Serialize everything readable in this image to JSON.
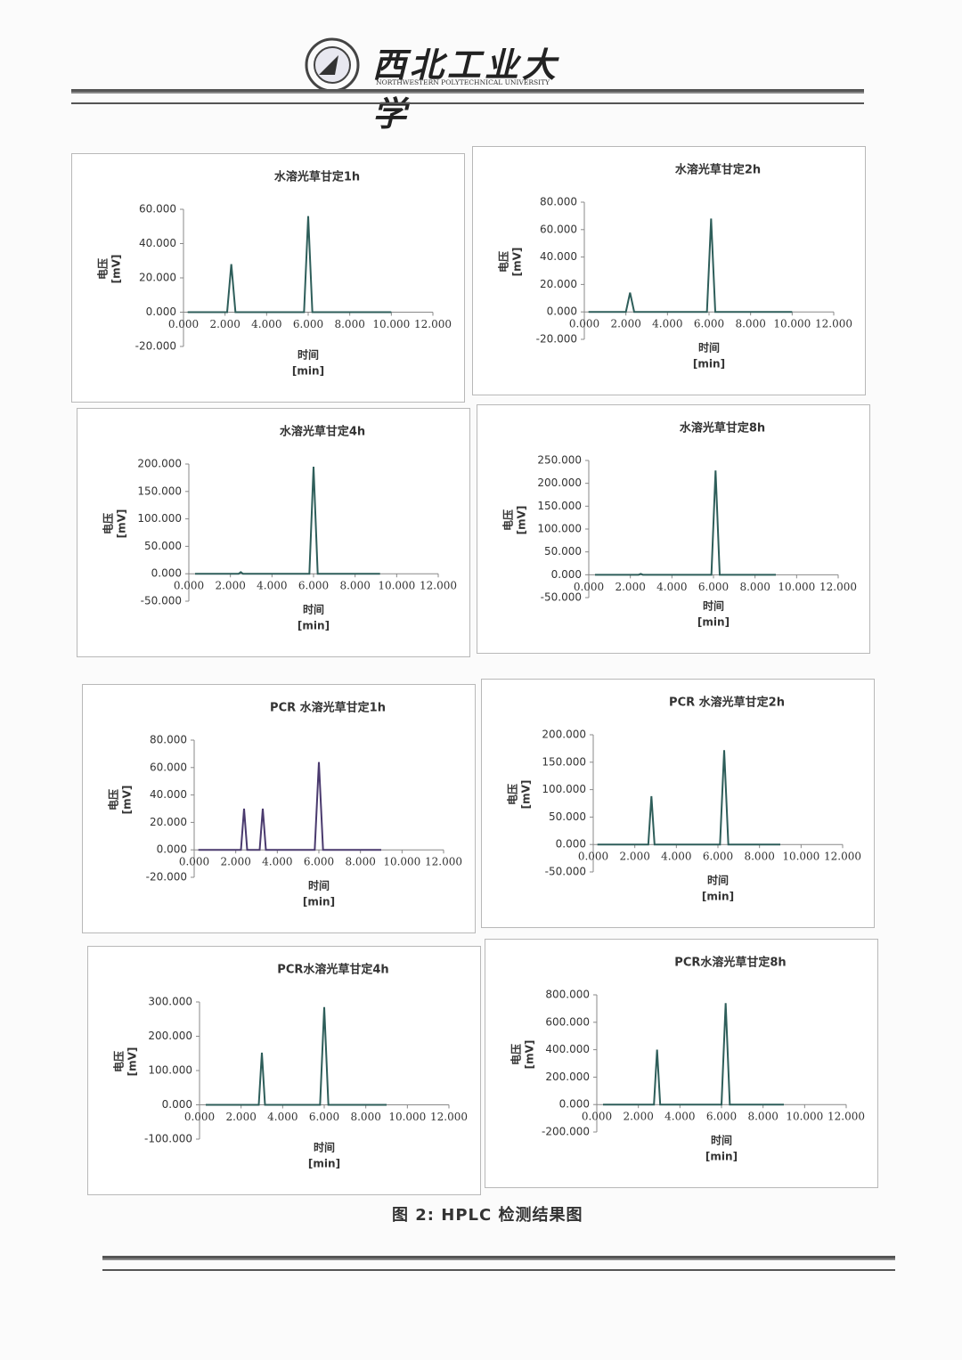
{
  "header": {
    "university": "西北工业大学",
    "university_en": "NORTHWESTERN POLYTECHNICAL UNIVERSITY"
  },
  "caption": "图 2: HPLC 检测结果图",
  "chart_data": [
    {
      "type": "line",
      "title": "水溶光草甘定1h",
      "y_label": [
        "电压",
        "[mV]"
      ],
      "x_label": [
        "时间",
        "[min]"
      ],
      "x": [
        0.2,
        2.1,
        2.3,
        2.5,
        5.8,
        6.0,
        6.2,
        10.0
      ],
      "values": [
        0,
        0,
        28,
        0,
        0,
        56,
        0,
        0
      ],
      "color": "#2e5e5a",
      "xlim": [
        0,
        12
      ],
      "xticks": [
        {
          "value": 0,
          "label": "0.000"
        },
        {
          "value": 2,
          "label": "2.000"
        },
        {
          "value": 4,
          "label": "4.000"
        },
        {
          "value": 6,
          "label": "6.000"
        },
        {
          "value": 8,
          "label": "8.000"
        },
        {
          "value": 10,
          "label": "10.000"
        },
        {
          "value": 12,
          "label": "12.000"
        }
      ],
      "ylim": [
        -20,
        60
      ],
      "yticks": [
        {
          "value": -20,
          "label": "-20.000"
        },
        {
          "value": 0,
          "label": "0.000"
        },
        {
          "value": 20,
          "label": "20.000"
        },
        {
          "value": 40,
          "label": "40.000"
        },
        {
          "value": 60,
          "label": "60.000"
        }
      ]
    },
    {
      "type": "line",
      "title": "水溶光草甘定2h",
      "y_label": [
        "电压",
        "[mV]"
      ],
      "x_label": [
        "时间",
        "[min]"
      ],
      "x": [
        0.2,
        2.0,
        2.2,
        2.4,
        5.9,
        6.1,
        6.3,
        10.0
      ],
      "values": [
        0,
        0,
        14,
        0,
        0,
        68,
        0,
        0
      ],
      "color": "#2e5e5a",
      "xlim": [
        0,
        12
      ],
      "xticks": [
        {
          "value": 0,
          "label": "0.000"
        },
        {
          "value": 2,
          "label": "2.000"
        },
        {
          "value": 4,
          "label": "4.000"
        },
        {
          "value": 6,
          "label": "6.000"
        },
        {
          "value": 8,
          "label": "8.000"
        },
        {
          "value": 10,
          "label": "10.000"
        },
        {
          "value": 12,
          "label": "12.000"
        }
      ],
      "ylim": [
        -20,
        80
      ],
      "yticks": [
        {
          "value": -20,
          "label": "-20.000"
        },
        {
          "value": 0,
          "label": "0.000"
        },
        {
          "value": 20,
          "label": "20.000"
        },
        {
          "value": 40,
          "label": "40.000"
        },
        {
          "value": 60,
          "label": "60.000"
        },
        {
          "value": 80,
          "label": "80.000"
        }
      ]
    },
    {
      "type": "line",
      "title": "水溶光草甘定4h",
      "y_label": [
        "电压",
        "[mV]"
      ],
      "x_label": [
        "时间",
        "[min]"
      ],
      "x": [
        0.3,
        2.4,
        2.5,
        2.6,
        5.8,
        6.0,
        6.2,
        9.2
      ],
      "values": [
        0,
        0,
        3,
        0,
        0,
        195,
        0,
        0
      ],
      "color": "#2e5e5a",
      "xlim": [
        0,
        12
      ],
      "xticks": [
        {
          "value": 0,
          "label": "0.000"
        },
        {
          "value": 2,
          "label": "2.000"
        },
        {
          "value": 4,
          "label": "4.000"
        },
        {
          "value": 6,
          "label": "6.000"
        },
        {
          "value": 8,
          "label": "8.000"
        },
        {
          "value": 10,
          "label": "10.000"
        },
        {
          "value": 12,
          "label": "12.000"
        }
      ],
      "ylim": [
        -50,
        200
      ],
      "yticks": [
        {
          "value": -50,
          "label": "-50.000"
        },
        {
          "value": 0,
          "label": "0.000"
        },
        {
          "value": 50,
          "label": "50.000"
        },
        {
          "value": 100,
          "label": "100.000"
        },
        {
          "value": 150,
          "label": "150.000"
        },
        {
          "value": 200,
          "label": "200.000"
        }
      ]
    },
    {
      "type": "line",
      "title": "水溶光草甘定8h",
      "y_label": [
        "电压",
        "[mV]"
      ],
      "x_label": [
        "时间",
        "[min]"
      ],
      "x": [
        0.3,
        2.4,
        2.5,
        2.6,
        5.9,
        6.1,
        6.3,
        9.0
      ],
      "values": [
        0,
        0,
        2,
        0,
        0,
        228,
        0,
        0
      ],
      "color": "#2e5e5a",
      "xlim": [
        0,
        12
      ],
      "xticks": [
        {
          "value": 0,
          "label": "0.000"
        },
        {
          "value": 2,
          "label": "2.000"
        },
        {
          "value": 4,
          "label": "4.000"
        },
        {
          "value": 6,
          "label": "6.000"
        },
        {
          "value": 8,
          "label": "8.000"
        },
        {
          "value": 10,
          "label": "10.000"
        },
        {
          "value": 12,
          "label": "12.000"
        }
      ],
      "ylim": [
        -50,
        250
      ],
      "yticks": [
        {
          "value": -50,
          "label": "-50.000"
        },
        {
          "value": 0,
          "label": "0.000"
        },
        {
          "value": 50,
          "label": "50.000"
        },
        {
          "value": 100,
          "label": "100.000"
        },
        {
          "value": 150,
          "label": "150.000"
        },
        {
          "value": 200,
          "label": "200.000"
        },
        {
          "value": 250,
          "label": "250.000"
        }
      ]
    },
    {
      "type": "line",
      "title": "PCR 水溶光草甘定1h",
      "y_label": [
        "电压",
        "[mV]"
      ],
      "x_label": [
        "时间",
        "[min]"
      ],
      "x": [
        0.2,
        2.25,
        2.4,
        2.55,
        3.15,
        3.3,
        3.45,
        5.8,
        6.0,
        6.2,
        9.0
      ],
      "values": [
        0,
        0,
        30,
        0,
        0,
        30,
        0,
        0,
        64,
        0,
        0
      ],
      "color": "#4a3a6e",
      "xlim": [
        0,
        12
      ],
      "xticks": [
        {
          "value": 0,
          "label": "0.000"
        },
        {
          "value": 2,
          "label": "2.000"
        },
        {
          "value": 4,
          "label": "4.000"
        },
        {
          "value": 6,
          "label": "6.000"
        },
        {
          "value": 8,
          "label": "8.000"
        },
        {
          "value": 10,
          "label": "10.000"
        },
        {
          "value": 12,
          "label": "12.000"
        }
      ],
      "ylim": [
        -20,
        80
      ],
      "yticks": [
        {
          "value": -20,
          "label": "-20.000"
        },
        {
          "value": 0,
          "label": "0.000"
        },
        {
          "value": 20,
          "label": "20.000"
        },
        {
          "value": 40,
          "label": "40.000"
        },
        {
          "value": 60,
          "label": "60.000"
        },
        {
          "value": 80,
          "label": "80.000"
        }
      ]
    },
    {
      "type": "line",
      "title": "PCR 水溶光草甘定2h",
      "y_label": [
        "电压",
        "[mV]"
      ],
      "x_label": [
        "时间",
        "[min]"
      ],
      "x": [
        0.2,
        2.65,
        2.8,
        2.95,
        6.1,
        6.3,
        6.5,
        9.0
      ],
      "values": [
        0,
        0,
        88,
        0,
        0,
        172,
        0,
        0
      ],
      "color": "#2e5e5a",
      "xlim": [
        0,
        12
      ],
      "xticks": [
        {
          "value": 0,
          "label": "0.000"
        },
        {
          "value": 2,
          "label": "2.000"
        },
        {
          "value": 4,
          "label": "4.000"
        },
        {
          "value": 6,
          "label": "6.000"
        },
        {
          "value": 8,
          "label": "8.000"
        },
        {
          "value": 10,
          "label": "10.000"
        },
        {
          "value": 12,
          "label": "12.000"
        }
      ],
      "ylim": [
        -50,
        200
      ],
      "yticks": [
        {
          "value": -50,
          "label": "-50.000"
        },
        {
          "value": 0,
          "label": "0.000"
        },
        {
          "value": 50,
          "label": "50.000"
        },
        {
          "value": 100,
          "label": "100.000"
        },
        {
          "value": 150,
          "label": "150.000"
        },
        {
          "value": 200,
          "label": "200.000"
        }
      ]
    },
    {
      "type": "line",
      "title": "PCR水溶光草甘定4h",
      "y_label": [
        "电压",
        "[mV]"
      ],
      "x_label": [
        "时间",
        "[min]"
      ],
      "x": [
        0.3,
        2.85,
        3.0,
        3.15,
        5.8,
        6.0,
        6.2,
        9.0
      ],
      "values": [
        0,
        0,
        152,
        0,
        0,
        285,
        0,
        0
      ],
      "color": "#2e5e5a",
      "xlim": [
        0,
        12
      ],
      "xticks": [
        {
          "value": 0,
          "label": "0.000"
        },
        {
          "value": 2,
          "label": "2.000"
        },
        {
          "value": 4,
          "label": "4.000"
        },
        {
          "value": 6,
          "label": "6.000"
        },
        {
          "value": 8,
          "label": "8.000"
        },
        {
          "value": 10,
          "label": "10.000"
        },
        {
          "value": 12,
          "label": "12.000"
        }
      ],
      "ylim": [
        -100,
        300
      ],
      "yticks": [
        {
          "value": -100,
          "label": "-100.000"
        },
        {
          "value": 0,
          "label": "0.000"
        },
        {
          "value": 100,
          "label": "100.000"
        },
        {
          "value": 200,
          "label": "200.000"
        },
        {
          "value": 300,
          "label": "300.000"
        }
      ]
    },
    {
      "type": "line",
      "title": "PCR水溶光草甘定8h",
      "y_label": [
        "电压",
        "[mV]"
      ],
      "x_label": [
        "时间",
        "[min]"
      ],
      "x": [
        0.3,
        2.75,
        2.9,
        3.05,
        6.0,
        6.2,
        6.4,
        9.0
      ],
      "values": [
        0,
        0,
        400,
        0,
        0,
        740,
        0,
        0
      ],
      "color": "#2e5e5a",
      "xlim": [
        0,
        12
      ],
      "xticks": [
        {
          "value": 0,
          "label": "0.000"
        },
        {
          "value": 2,
          "label": "2.000"
        },
        {
          "value": 4,
          "label": "4.000"
        },
        {
          "value": 6,
          "label": "6.000"
        },
        {
          "value": 8,
          "label": "8.000"
        },
        {
          "value": 10,
          "label": "10.000"
        },
        {
          "value": 12,
          "label": "12.000"
        }
      ],
      "ylim": [
        -200,
        800
      ],
      "yticks": [
        {
          "value": -200,
          "label": "-200.000"
        },
        {
          "value": 0,
          "label": "0.000"
        },
        {
          "value": 200,
          "label": "200.000"
        },
        {
          "value": 400,
          "label": "400.000"
        },
        {
          "value": 600,
          "label": "600.000"
        },
        {
          "value": 800,
          "label": "800.000"
        }
      ]
    }
  ]
}
